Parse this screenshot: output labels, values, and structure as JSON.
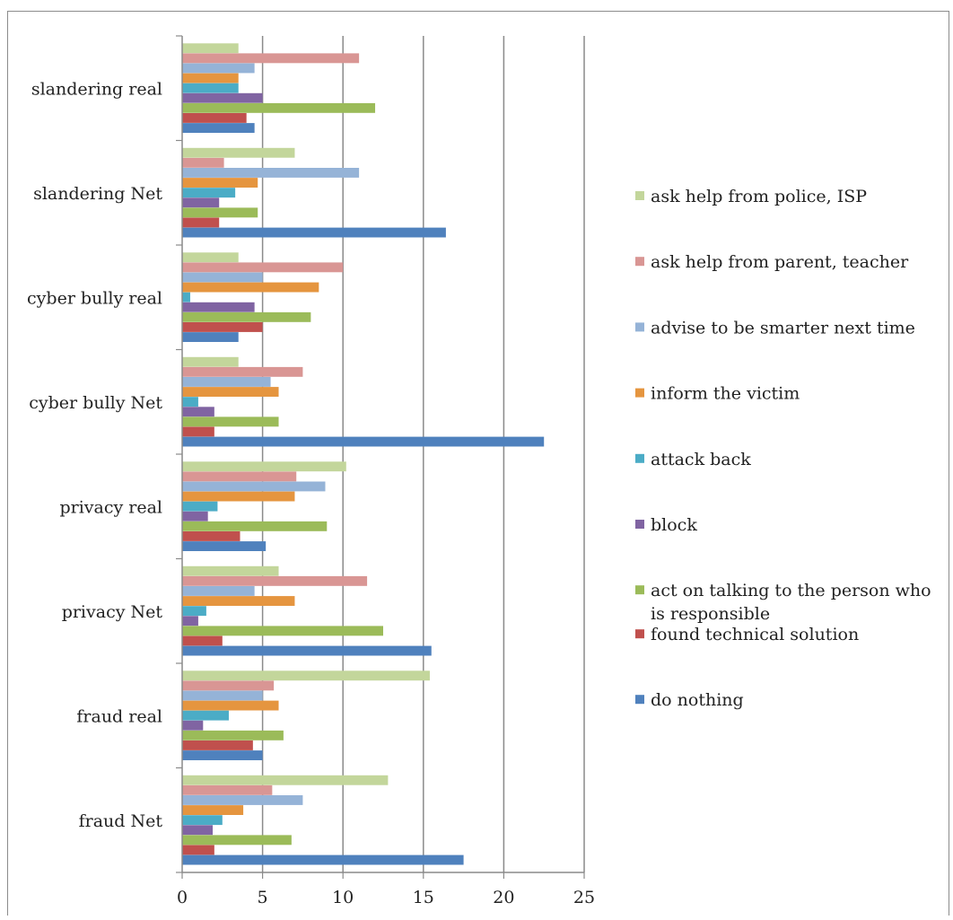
{
  "chart_data": {
    "type": "bar",
    "orientation": "horizontal",
    "categories": [
      "slandering real",
      "slandering Net",
      "cyber bully real",
      "cyber bully Net",
      "privacy real",
      "privacy Net",
      "fraud real",
      "fraud Net"
    ],
    "series": [
      {
        "name": "ask help from police, ISP",
        "color": "#c3d69b",
        "values": [
          3.5,
          7,
          3.5,
          3.5,
          10.2,
          6,
          15.4,
          12.8
        ]
      },
      {
        "name": "ask help from parent, teacher",
        "color": "#d99694",
        "values": [
          11,
          2.6,
          10,
          7.5,
          7.1,
          11.5,
          5.7,
          5.6
        ]
      },
      {
        "name": "advise to be smarter next time",
        "color": "#95b3d7",
        "values": [
          4.5,
          11,
          5,
          5.5,
          8.9,
          4.5,
          5,
          7.5
        ]
      },
      {
        "name": "inform the victim",
        "color": "#e5953f",
        "values": [
          3.5,
          4.7,
          8.5,
          6,
          7,
          7,
          6,
          3.8
        ]
      },
      {
        "name": "attack back",
        "color": "#4bacc6",
        "values": [
          3.5,
          3.3,
          0.5,
          1,
          2.2,
          1.5,
          2.9,
          2.5
        ]
      },
      {
        "name": "block",
        "color": "#8064a2",
        "values": [
          5,
          2.3,
          4.5,
          2,
          1.6,
          1,
          1.3,
          1.9
        ]
      },
      {
        "name": [
          "act on talking to the person who",
          "is responsible"
        ],
        "color": "#9bbb59",
        "values": [
          12,
          4.7,
          8,
          6,
          9,
          12.5,
          6.3,
          6.8
        ]
      },
      {
        "name": "found technical solution",
        "color": "#c0504d",
        "values": [
          4,
          2.3,
          5,
          2,
          3.6,
          2.5,
          4.4,
          2
        ]
      },
      {
        "name": "do nothing",
        "color": "#4f81bd",
        "values": [
          4.5,
          16.4,
          3.5,
          22.5,
          5.2,
          15.5,
          5,
          17.5
        ]
      }
    ],
    "xlim": [
      0,
      25
    ],
    "xticks": [
      0,
      5,
      10,
      15,
      20,
      25
    ],
    "grid": "vertical",
    "legend": "right"
  }
}
